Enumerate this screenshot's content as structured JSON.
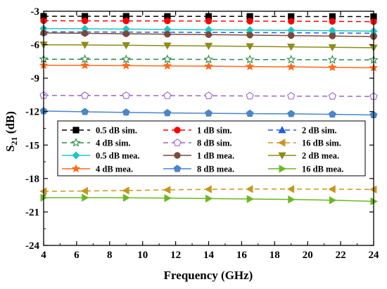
{
  "chart_data": {
    "type": "line",
    "title": "",
    "xlabel": "Frequency (GHz)",
    "ylabel_main": "S",
    "ylabel_sub": "21",
    "ylabel_unit": " (dB)",
    "xlim": [
      4,
      24
    ],
    "ylim": [
      -24,
      -3
    ],
    "xticks": [
      "4",
      "6",
      "8",
      "10",
      "12",
      "14",
      "16",
      "18",
      "20",
      "22",
      "24"
    ],
    "yticks": [
      "-3",
      "-6",
      "-9",
      "-12",
      "-15",
      "-18",
      "-21",
      "-24"
    ],
    "grid": false,
    "legend_placement": "center-left",
    "x": [
      4,
      6.5,
      9,
      11.5,
      14,
      16.5,
      19,
      21.5,
      24
    ],
    "series": [
      {
        "name": "0.5 dB sim.",
        "color": "#000000",
        "dash": true,
        "marker": "square",
        "filled": true,
        "values": [
          -3.45,
          -3.45,
          -3.45,
          -3.46,
          -3.46,
          -3.46,
          -3.47,
          -3.47,
          -3.48
        ]
      },
      {
        "name": "1 dB sim.",
        "color": "#ff0000",
        "dash": true,
        "marker": "circle",
        "filled": true,
        "values": [
          -3.85,
          -3.86,
          -3.87,
          -3.87,
          -3.88,
          -3.89,
          -3.9,
          -3.91,
          -3.93
        ]
      },
      {
        "name": "2 dB sim.",
        "color": "#1f5fd9",
        "dash": true,
        "marker": "triangle-up",
        "filled": true,
        "values": [
          -4.85,
          -4.86,
          -4.87,
          -4.88,
          -4.9,
          -4.91,
          -4.93,
          -4.95,
          -4.97
        ]
      },
      {
        "name": "4 dB sim.",
        "color": "#2a8c4a",
        "dash": true,
        "marker": "star",
        "filled": false,
        "values": [
          -7.3,
          -7.3,
          -7.31,
          -7.31,
          -7.32,
          -7.33,
          -7.34,
          -7.35,
          -7.36
        ]
      },
      {
        "name": "8 dB sim.",
        "color": "#9966cc",
        "dash": true,
        "marker": "pentagon",
        "filled": false,
        "values": [
          -10.55,
          -10.56,
          -10.56,
          -10.57,
          -10.58,
          -10.6,
          -10.61,
          -10.62,
          -10.64
        ]
      },
      {
        "name": "16 dB sim.",
        "color": "#c8961e",
        "dash": true,
        "marker": "triangle-left",
        "filled": true,
        "values": [
          -19.15,
          -19.12,
          -19.08,
          -19.02,
          -18.97,
          -18.95,
          -18.95,
          -18.96,
          -18.98
        ]
      },
      {
        "name": "0.5 dB mea.",
        "color": "#22c5c5",
        "dash": false,
        "marker": "diamond",
        "filled": true,
        "values": [
          -4.55,
          -4.57,
          -4.6,
          -4.63,
          -4.66,
          -4.69,
          -4.71,
          -4.74,
          -4.78
        ]
      },
      {
        "name": "1 dB mea.",
        "color": "#7a4a3a",
        "dash": false,
        "marker": "circle",
        "filled": true,
        "values": [
          -4.95,
          -4.98,
          -5.02,
          -5.06,
          -5.1,
          -5.14,
          -5.18,
          -5.22,
          -5.27
        ]
      },
      {
        "name": "2 dB mea.",
        "color": "#8c8c1a",
        "dash": false,
        "marker": "triangle-down",
        "filled": true,
        "values": [
          -6.0,
          -6.02,
          -6.05,
          -6.08,
          -6.11,
          -6.15,
          -6.19,
          -6.23,
          -6.27
        ]
      },
      {
        "name": "4 dB mea.",
        "color": "#ff6a1a",
        "dash": false,
        "marker": "star",
        "filled": true,
        "values": [
          -7.85,
          -7.86,
          -7.88,
          -7.9,
          -7.93,
          -7.96,
          -7.99,
          -8.03,
          -8.07
        ]
      },
      {
        "name": "8 dB mea.",
        "color": "#4a86c8",
        "dash": false,
        "marker": "pentagon",
        "filled": true,
        "values": [
          -11.95,
          -12.02,
          -12.07,
          -12.12,
          -12.15,
          -12.18,
          -12.2,
          -12.25,
          -12.3
        ]
      },
      {
        "name": "16 dB mea.",
        "color": "#6ab820",
        "dash": false,
        "marker": "triangle-right",
        "filled": true,
        "values": [
          -19.72,
          -19.72,
          -19.73,
          -19.76,
          -19.8,
          -19.84,
          -19.88,
          -19.95,
          -20.05
        ]
      }
    ]
  }
}
